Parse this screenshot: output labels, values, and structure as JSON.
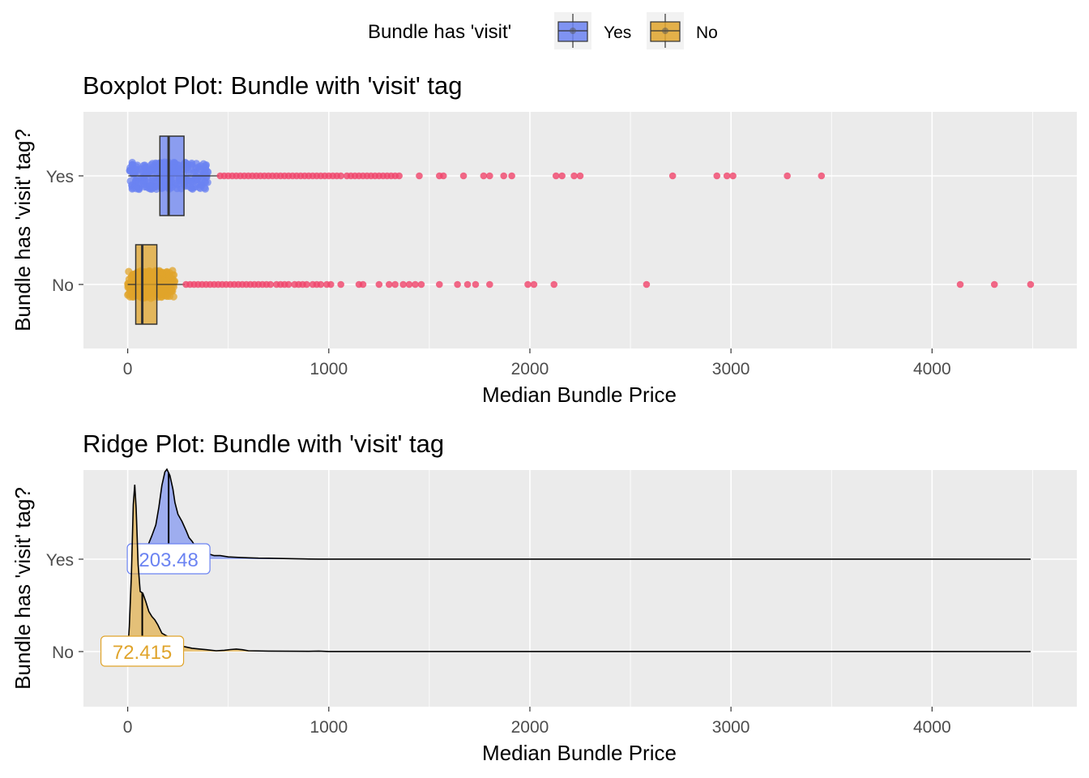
{
  "legend": {
    "title": "Bundle has 'visit'",
    "items": [
      {
        "label": "Yes",
        "color": "#6b83f2"
      },
      {
        "label": "No",
        "color": "#e0a42b"
      }
    ]
  },
  "colors": {
    "yes_fill": "#6b83f2",
    "no_fill": "#e0a42b",
    "outlier": "#f0436a",
    "panel_bg": "#ebebeb",
    "grid": "#ffffff"
  },
  "chart_data": [
    {
      "type": "box",
      "title": "Boxplot Plot: Bundle with 'visit' tag",
      "xlabel": "Median Bundle Price",
      "ylabel": "Bundle has 'visit' tag?",
      "xlim": [
        -220,
        4720
      ],
      "x_ticks": [
        0,
        1000,
        2000,
        3000,
        4000
      ],
      "grid": true,
      "categories": [
        "Yes",
        "No"
      ],
      "series": [
        {
          "name": "Yes",
          "whisker_low": 3,
          "q1": 160,
          "median": 203.48,
          "q3": 280,
          "whisker_high": 455,
          "jitter_range": [
            10,
            400
          ],
          "outliers": [
            460,
            480,
            500,
            520,
            540,
            560,
            580,
            600,
            620,
            640,
            660,
            680,
            700,
            720,
            740,
            760,
            780,
            800,
            820,
            840,
            860,
            880,
            900,
            920,
            940,
            960,
            980,
            1000,
            1020,
            1040,
            1060,
            1090,
            1110,
            1130,
            1150,
            1170,
            1190,
            1210,
            1230,
            1250,
            1270,
            1290,
            1310,
            1330,
            1350,
            1450,
            1550,
            1570,
            1670,
            1770,
            1800,
            1870,
            1910,
            2130,
            2160,
            2220,
            2250,
            2710,
            2930,
            2980,
            3010,
            3280,
            3450
          ]
        },
        {
          "name": "No",
          "whisker_low": 0,
          "q1": 40,
          "median": 72.415,
          "q3": 145,
          "whisker_high": 285,
          "jitter_range": [
            0,
            235
          ],
          "outliers": [
            290,
            310,
            330,
            350,
            370,
            390,
            410,
            430,
            450,
            470,
            490,
            510,
            530,
            550,
            570,
            590,
            610,
            630,
            650,
            670,
            690,
            710,
            740,
            760,
            780,
            800,
            830,
            850,
            870,
            890,
            920,
            940,
            960,
            990,
            1010,
            1060,
            1150,
            1170,
            1250,
            1300,
            1330,
            1370,
            1400,
            1430,
            1460,
            1550,
            1640,
            1690,
            1730,
            1800,
            1990,
            2020,
            2120,
            2580,
            4140,
            4310,
            4490
          ]
        }
      ]
    },
    {
      "type": "ridge",
      "title": "Ridge Plot: Bundle with 'visit' tag",
      "xlabel": "Median Bundle Price",
      "ylabel": "Bundle has 'visit' tag?",
      "xlim": [
        -220,
        4720
      ],
      "x_ticks": [
        0,
        1000,
        2000,
        3000,
        4000
      ],
      "grid": true,
      "categories": [
        "Yes",
        "No"
      ],
      "x_max": 4490,
      "series": [
        {
          "name": "Yes",
          "median": 203.48,
          "median_label": "203.48",
          "density": [
            [
              0,
              0
            ],
            [
              60,
              0.01
            ],
            [
              85,
              0.06
            ],
            [
              100,
              0.15
            ],
            [
              120,
              0.26
            ],
            [
              140,
              0.38
            ],
            [
              155,
              0.58
            ],
            [
              170,
              0.82
            ],
            [
              185,
              0.97
            ],
            [
              195,
              1.0
            ],
            [
              210,
              0.93
            ],
            [
              225,
              0.78
            ],
            [
              235,
              0.63
            ],
            [
              250,
              0.5
            ],
            [
              270,
              0.42
            ],
            [
              290,
              0.32
            ],
            [
              305,
              0.24
            ],
            [
              320,
              0.2
            ],
            [
              335,
              0.15
            ],
            [
              350,
              0.11
            ],
            [
              370,
              0.08
            ],
            [
              400,
              0.06
            ],
            [
              430,
              0.04
            ],
            [
              460,
              0.04
            ],
            [
              500,
              0.025
            ],
            [
              550,
              0.02
            ],
            [
              600,
              0.015
            ],
            [
              650,
              0.012
            ],
            [
              700,
              0.011
            ],
            [
              750,
              0.008
            ],
            [
              800,
              0.006
            ],
            [
              850,
              0.004
            ],
            [
              880,
              0.003
            ],
            [
              900,
              0.0015
            ],
            [
              950,
              0.001
            ],
            [
              1000,
              0.0005
            ],
            [
              4490,
              0
            ]
          ]
        },
        {
          "name": "No",
          "median": 72.415,
          "median_label": "72.415",
          "density": [
            [
              0,
              0
            ],
            [
              8,
              0.15
            ],
            [
              18,
              0.45
            ],
            [
              28,
              0.88
            ],
            [
              35,
              1.0
            ],
            [
              42,
              0.86
            ],
            [
              52,
              0.52
            ],
            [
              62,
              0.36
            ],
            [
              75,
              0.35
            ],
            [
              90,
              0.3
            ],
            [
              105,
              0.24
            ],
            [
              120,
              0.21
            ],
            [
              135,
              0.19
            ],
            [
              150,
              0.16
            ],
            [
              170,
              0.11
            ],
            [
              185,
              0.1
            ],
            [
              200,
              0.09
            ],
            [
              220,
              0.06
            ],
            [
              250,
              0.04
            ],
            [
              280,
              0.03
            ],
            [
              320,
              0.02
            ],
            [
              360,
              0.015
            ],
            [
              400,
              0.01
            ],
            [
              440,
              0.005
            ],
            [
              480,
              0.008
            ],
            [
              510,
              0.012
            ],
            [
              540,
              0.015
            ],
            [
              570,
              0.011
            ],
            [
              600,
              0.005
            ],
            [
              700,
              0.003
            ],
            [
              800,
              0.002
            ],
            [
              900,
              0.0015
            ],
            [
              950,
              0.003
            ],
            [
              1000,
              0.0005
            ],
            [
              4490,
              0
            ]
          ]
        }
      ]
    }
  ]
}
